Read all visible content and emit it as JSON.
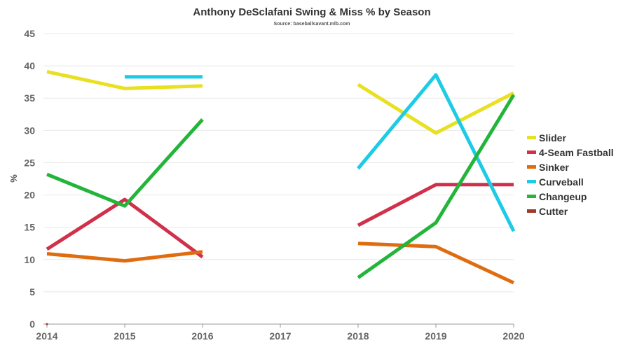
{
  "chart_data": {
    "type": "line",
    "title": "Anthony DeSclafani Swing & Miss % by Season",
    "subtitle": "Source: baseballsavant.mlb.com",
    "xlabel": "",
    "ylabel": "%",
    "x": [
      2014,
      2015,
      2016,
      2017,
      2018,
      2019,
      2020
    ],
    "x_tick_labels": [
      "2014",
      "2015",
      "2016",
      "2017",
      "2018",
      "2019",
      "2020"
    ],
    "ylim": [
      0,
      45
    ],
    "y_ticks": [
      0,
      5,
      10,
      15,
      20,
      25,
      30,
      35,
      40,
      45
    ],
    "grid": true,
    "legend_position": "right",
    "series": [
      {
        "name": "Slider",
        "color": "#e8e020",
        "values": [
          39.1,
          36.5,
          36.9,
          null,
          37.1,
          29.6,
          35.8
        ]
      },
      {
        "name": "4-Seam Fastball",
        "color": "#d1304a",
        "values": [
          11.6,
          19.3,
          10.4,
          null,
          15.3,
          21.6,
          21.6
        ]
      },
      {
        "name": "Sinker",
        "color": "#e06c10",
        "values": [
          10.9,
          9.8,
          11.2,
          null,
          12.5,
          12.0,
          6.4
        ]
      },
      {
        "name": "Curveball",
        "color": "#1ccbe6",
        "values": [
          null,
          38.3,
          38.3,
          null,
          24.1,
          38.6,
          14.4
        ]
      },
      {
        "name": "Changeup",
        "color": "#23b53a",
        "values": [
          23.2,
          18.3,
          31.7,
          null,
          7.2,
          15.7,
          35.5
        ]
      },
      {
        "name": "Cutter",
        "color": "#a03a2a",
        "values": [
          0.0,
          null,
          null,
          null,
          null,
          null,
          null
        ]
      }
    ]
  }
}
